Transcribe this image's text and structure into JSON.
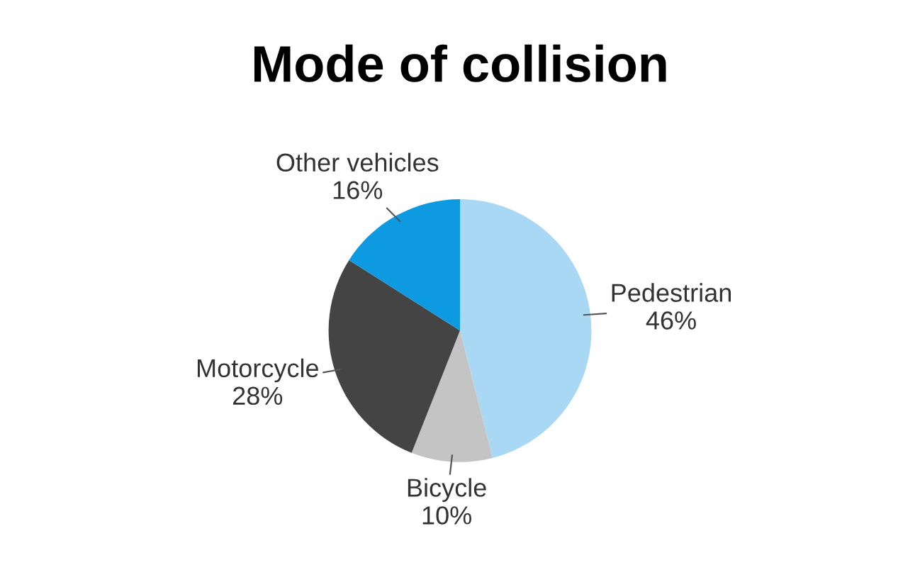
{
  "chart_data": {
    "type": "pie",
    "title": "Mode of collision",
    "categories": [
      "Pedestrian",
      "Bicycle",
      "Motorcycle",
      "Other vehicles"
    ],
    "values": [
      46,
      10,
      28,
      16
    ],
    "value_labels": [
      "46%",
      "10%",
      "28%",
      "16%"
    ],
    "colors": [
      "#a9d8f5",
      "#c4c4c4",
      "#444444",
      "#0d9ae0"
    ]
  }
}
